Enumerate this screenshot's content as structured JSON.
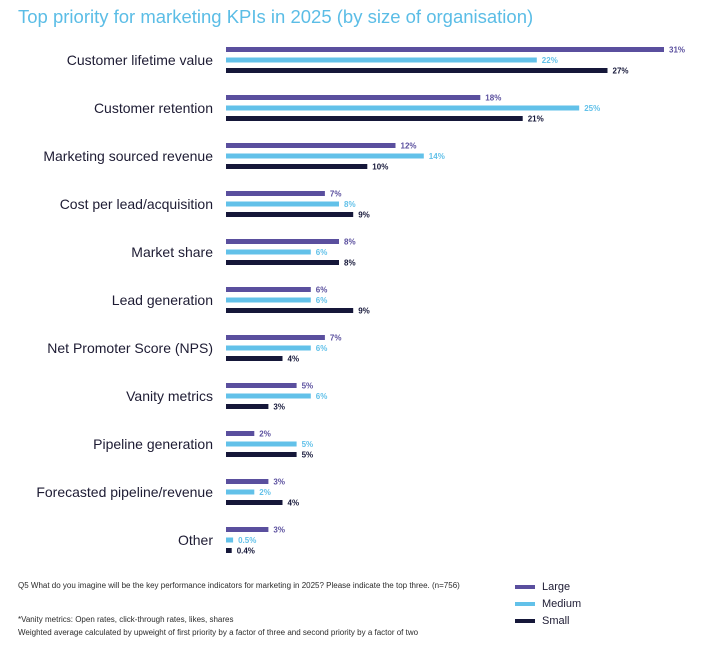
{
  "colors": {
    "accent": "#5bbde6",
    "large": "#5a4f9e",
    "medium": "#62c1e9",
    "small": "#151739",
    "text": "#1d1b33"
  },
  "chart_data": {
    "type": "bar",
    "orientation": "horizontal",
    "title": "Top priority for marketing KPIs in 2025 (by size of organisation)",
    "categories": [
      "Customer lifetime value",
      "Customer retention",
      "Marketing sourced revenue",
      "Cost per lead/acquisition",
      "Market share",
      "Lead generation",
      "Net Promoter Score (NPS)",
      "Vanity metrics",
      "Pipeline generation",
      "Forecasted pipeline/revenue",
      "Other"
    ],
    "series": [
      {
        "name": "Large",
        "values": [
          31,
          18,
          12,
          7,
          8,
          6,
          7,
          5,
          2,
          3,
          3
        ],
        "labels": [
          "31%",
          "18%",
          "12%",
          "7%",
          "8%",
          "6%",
          "7%",
          "5%",
          "2%",
          "3%",
          "3%"
        ]
      },
      {
        "name": "Medium",
        "values": [
          22,
          25,
          14,
          8,
          6,
          6,
          6,
          6,
          5,
          2,
          0.5
        ],
        "labels": [
          "22%",
          "25%",
          "14%",
          "8%",
          "6%",
          "6%",
          "6%",
          "6%",
          "5%",
          "2%",
          "0.5%"
        ]
      },
      {
        "name": "Small",
        "values": [
          27,
          21,
          10,
          9,
          8,
          9,
          4,
          3,
          5,
          4,
          0.4
        ],
        "labels": [
          "27%",
          "21%",
          "10%",
          "9%",
          "8%",
          "9%",
          "4%",
          "3%",
          "5%",
          "4%",
          "0.4%"
        ]
      }
    ],
    "xlim": [
      0,
      31
    ],
    "grid": false,
    "legend_position": "bottom-right"
  },
  "footnotes": {
    "question": "Q5  What do you imagine will be the key performance indicators for marketing in 2025? Please indicate the top three. (n=756)",
    "vanity": "*Vanity metrics: Open rates, click-through rates, likes, shares",
    "weighting": "Weighted average calculated by upweight of first priority by a factor of three and second priority by a factor of two"
  }
}
